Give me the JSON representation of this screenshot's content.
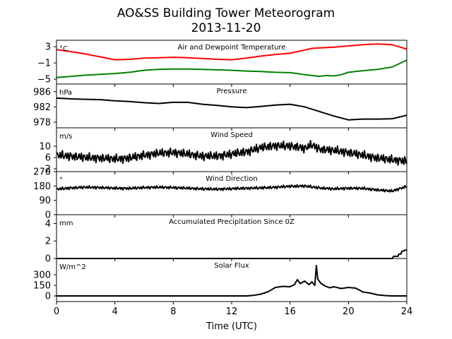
{
  "title": "AO&SS Building Tower Meteorogram",
  "subtitle": "2013-11-20",
  "chart_data": {
    "type": "line",
    "xlabel": "Time (UTC)",
    "xlim": [
      0,
      24
    ],
    "xticks": [
      0,
      4,
      8,
      12,
      16,
      20,
      24
    ],
    "panels": [
      {
        "title": "Air and Dewpoint Temperature",
        "unit": "°C",
        "ylim": [
          -6.2,
          4.6
        ],
        "yticks": [
          3,
          -1,
          -5
        ],
        "yticklabels": [
          "3",
          "−1",
          "−5"
        ],
        "series": [
          {
            "color": "#ff0000",
            "x": [
              0,
              1,
              2,
              3,
              4,
              5,
              6,
              7,
              8,
              9,
              10,
              11,
              12,
              13,
              14,
              15,
              16,
              16.5,
              17,
              17.5,
              18,
              19,
              20,
              21,
              22,
              23,
              24
            ],
            "y": [
              2.3,
              1.8,
              1.2,
              0.5,
              -0.2,
              -0.1,
              0.2,
              0.3,
              0.4,
              0.3,
              0.1,
              -0.1,
              -0.2,
              0.2,
              0.7,
              1.1,
              1.4,
              1.8,
              2.2,
              2.6,
              2.7,
              2.9,
              3.2,
              3.5,
              3.7,
              3.5,
              2.4
            ]
          },
          {
            "color": "#008000",
            "x": [
              0,
              1,
              2,
              3,
              4,
              5,
              6,
              7,
              8,
              9,
              10,
              11,
              12,
              13,
              14,
              15,
              16,
              16.5,
              17,
              17.5,
              18,
              18.5,
              19,
              19.5,
              20,
              21,
              22,
              23,
              24
            ],
            "y": [
              -4.6,
              -4.3,
              -4.0,
              -3.8,
              -3.6,
              -3.3,
              -2.8,
              -2.6,
              -2.5,
              -2.5,
              -2.6,
              -2.7,
              -2.8,
              -3.0,
              -3.1,
              -3.3,
              -3.4,
              -3.6,
              -3.9,
              -4.1,
              -4.3,
              -4.1,
              -4.2,
              -3.9,
              -3.3,
              -2.9,
              -2.6,
              -2.0,
              -0.3
            ]
          }
        ]
      },
      {
        "title": "Pressure",
        "unit": "hPa",
        "ylim": [
          976.5,
          988.0
        ],
        "yticks": [
          986,
          982,
          978
        ],
        "yticklabels": [
          "986",
          "982",
          "978"
        ],
        "series": [
          {
            "color": "#000000",
            "x": [
              0,
              1,
              2,
              3,
              4,
              5,
              6,
              7,
              8,
              9,
              10,
              11,
              12,
              13,
              14,
              15,
              16,
              17,
              18,
              19,
              20,
              21,
              22,
              23,
              24
            ],
            "y": [
              984.3,
              984.1,
              984.0,
              983.9,
              983.6,
              983.4,
              983.1,
              982.9,
              983.2,
              983.2,
              982.7,
              982.4,
              982.0,
              981.8,
              982.1,
              982.5,
              982.7,
              982.0,
              980.8,
              979.6,
              978.6,
              978.8,
              978.8,
              978.9,
              979.8
            ]
          }
        ]
      },
      {
        "title": "Wind Speed",
        "unit": "m/s",
        "ylim": [
          1.0,
          16.5
        ],
        "yticks": [
          10,
          6,
          2
        ],
        "yticklabels": [
          "10",
          "6",
          "2"
        ],
        "series": [
          {
            "color": "#000000",
            "x": [
              0,
              1,
              2,
              3,
              4,
              5,
              6,
              7,
              8,
              9,
              10,
              11,
              12,
              13,
              14,
              15,
              16,
              16.5,
              17,
              17.5,
              18,
              19,
              20,
              21,
              22,
              23,
              24
            ],
            "y": [
              6.8,
              6.5,
              6.0,
              5.8,
              5.5,
              5.8,
              6.8,
              7.5,
              7.8,
              7.2,
              6.5,
              6.5,
              7.2,
              8.0,
              9.5,
              10.2,
              10.0,
              9.8,
              9.2,
              10.5,
              9.0,
              8.5,
              7.8,
              6.8,
              5.8,
              5.2,
              4.8
            ],
            "noise": 1.8
          }
        ]
      },
      {
        "title": "Wind Direction",
        "unit": "°",
        "ylim": [
          0,
          270
        ],
        "yticks": [
          270,
          180,
          90,
          0
        ],
        "yticklabels": [
          "270",
          "180",
          "90",
          "0"
        ],
        "series": [
          {
            "color": "#000000",
            "x": [
              0,
              1,
              2,
              3,
              4,
              5,
              6,
              7,
              8,
              9,
              10,
              11,
              12,
              13,
              14,
              15,
              16,
              17,
              18,
              19,
              20,
              21,
              22,
              23,
              24
            ],
            "y": [
              160,
              168,
              172,
              170,
              166,
              165,
              170,
              172,
              170,
              166,
              162,
              160,
              163,
              166,
              168,
              172,
              178,
              180,
              168,
              162,
              166,
              165,
              155,
              148,
              178
            ],
            "noise": 10
          }
        ]
      },
      {
        "title": "Accumulated Precipitation Since 0Z",
        "unit": "mm",
        "ylim": [
          0,
          5.0
        ],
        "yticks": [
          4,
          2,
          0
        ],
        "yticklabels": [
          "4",
          "2",
          "0"
        ],
        "series": [
          {
            "color": "#000000",
            "x": [
              0,
              23.0,
              23.1,
              23.4,
              23.45,
              23.6,
              23.65,
              24
            ],
            "y": [
              0,
              0,
              0.25,
              0.25,
              0.5,
              0.5,
              0.8,
              1.0
            ]
          }
        ]
      },
      {
        "title": "Solar Flux",
        "unit": "W/m^2",
        "ylim": [
          -80,
          530
        ],
        "yticks": [
          300,
          150,
          0
        ],
        "yticklabels": [
          "300",
          "150",
          "0"
        ],
        "series": [
          {
            "color": "#000000",
            "x": [
              0,
              13.0,
              13.5,
              14.0,
              14.5,
              15.0,
              15.5,
              16.0,
              16.3,
              16.5,
              16.7,
              17.0,
              17.3,
              17.5,
              17.7,
              17.8,
              17.9,
              18.1,
              18.4,
              18.7,
              19.0,
              19.5,
              20.0,
              20.5,
              21.0,
              21.5,
              22.0,
              22.5,
              23.0,
              24
            ],
            "y": [
              0,
              0,
              8,
              25,
              60,
              120,
              135,
              130,
              160,
              230,
              175,
              210,
              160,
              200,
              150,
              430,
              240,
              180,
              140,
              115,
              130,
              105,
              120,
              110,
              55,
              40,
              15,
              5,
              0,
              0
            ]
          }
        ]
      }
    ]
  }
}
